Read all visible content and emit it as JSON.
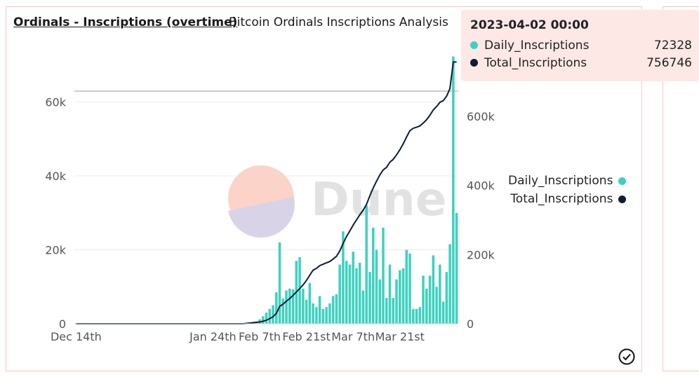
{
  "header": {
    "title": "Ordinals - Inscriptions (overtime)",
    "subtitle": "Bitcoin Ordinals Inscriptions Analysis"
  },
  "watermark": {
    "text": "Dune"
  },
  "tooltip": {
    "title": "2023-04-02 00:00",
    "rows": [
      {
        "name": "Daily_Inscriptions",
        "value": "72328",
        "color": "#3fd1c0"
      },
      {
        "name": "Total_Inscriptions",
        "value": "756746",
        "color": "#0b1e33"
      }
    ]
  },
  "legend": {
    "items": [
      {
        "name": "Daily_Inscriptions",
        "color": "#3fd1c0"
      },
      {
        "name": "Total_Inscriptions",
        "color": "#0b1e33"
      }
    ]
  },
  "chart_data": {
    "type": "bar+line",
    "x_start": "2022-12-14",
    "x_ticks": [
      "Dec 14th",
      "Jan 24th",
      "Feb 7th",
      "Feb 21st",
      "Mar 7th",
      "Mar 21st"
    ],
    "y_left_ticks": [
      "0",
      "20k",
      "40k",
      "60k"
    ],
    "y_right_ticks": [
      "0",
      "200k",
      "400k",
      "600k"
    ],
    "ylim_left": [
      0,
      73000
    ],
    "ylim_right": [
      0,
      780000
    ],
    "series": [
      {
        "name": "Daily_Inscriptions",
        "type": "bar",
        "axis": "left",
        "color": "#3fd1c0",
        "values": [
          0,
          0,
          0,
          0,
          0,
          0,
          0,
          0,
          0,
          0,
          0,
          0,
          0,
          0,
          0,
          0,
          0,
          0,
          0,
          0,
          0,
          0,
          0,
          0,
          0,
          0,
          0,
          0,
          0,
          0,
          0,
          0,
          0,
          0,
          0,
          0,
          0,
          0,
          0,
          0,
          0,
          0,
          0,
          0,
          0,
          0,
          0,
          0,
          0,
          0,
          0,
          200,
          300,
          500,
          600,
          1200,
          2000,
          3000,
          4000,
          5000,
          8500,
          22000,
          6800,
          9000,
          9500,
          9300,
          17000,
          18000,
          9500,
          6500,
          11000,
          5500,
          4500,
          7500,
          4000,
          4500,
          5500,
          7500,
          8000,
          16000,
          25000,
          17000,
          16000,
          19500,
          15000,
          16500,
          9000,
          32000,
          14000,
          26000,
          20000,
          12000,
          26000,
          7000,
          16000,
          7000,
          12000,
          14500,
          15000,
          20000,
          19000,
          4000,
          4000,
          4500,
          13000,
          9500,
          13000,
          18500,
          10000,
          16000,
          6000,
          14000,
          21500,
          72328,
          30000
        ]
      },
      {
        "name": "Total_Inscriptions",
        "type": "line",
        "axis": "right",
        "color": "#0b1e33",
        "values": [
          0,
          0,
          0,
          0,
          0,
          0,
          0,
          0,
          0,
          0,
          0,
          0,
          0,
          0,
          0,
          0,
          0,
          0,
          0,
          0,
          0,
          0,
          0,
          0,
          0,
          0,
          0,
          0,
          0,
          0,
          0,
          0,
          0,
          0,
          0,
          0,
          0,
          0,
          0,
          0,
          0,
          0,
          0,
          0,
          0,
          0,
          0,
          0,
          0,
          0,
          0,
          1000,
          2000,
          3000,
          4000,
          5000,
          7000,
          10000,
          15000,
          20000,
          30000,
          50000,
          57000,
          65000,
          73000,
          82000,
          92000,
          102000,
          112000,
          125000,
          140000,
          155000,
          160000,
          168000,
          172000,
          176000,
          180000,
          187000,
          195000,
          210000,
          232000,
          252000,
          268000,
          285000,
          300000,
          315000,
          328000,
          345000,
          370000,
          392000,
          412000,
          430000,
          445000,
          452000,
          467000,
          475000,
          488000,
          503000,
          520000,
          540000,
          558000,
          565000,
          568000,
          572000,
          580000,
          590000,
          603000,
          618000,
          628000,
          640000,
          645000,
          658000,
          680000,
          756746,
          756746
        ]
      }
    ]
  }
}
